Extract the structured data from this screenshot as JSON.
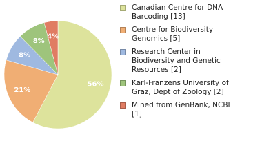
{
  "chart_data": {
    "type": "pie",
    "categories": [
      "Canadian Centre for DNA Barcoding [13]",
      "Centre for Biodiversity Genomics [5]",
      "Research Center in Biodiversity and Genetic Resources [2]",
      "Karl-Franzens University of Graz, Dept of Zoology [2]",
      "Mined from GenBank, NCBI [1]"
    ],
    "values": [
      56,
      21,
      8,
      8,
      4
    ],
    "value_labels": [
      "56%",
      "21%",
      "8%",
      "8%",
      "4%"
    ],
    "colors": [
      "#dde39c",
      "#f0ae74",
      "#9fb9e0",
      "#9ec47c",
      "#e07c63"
    ],
    "legend": "right"
  }
}
